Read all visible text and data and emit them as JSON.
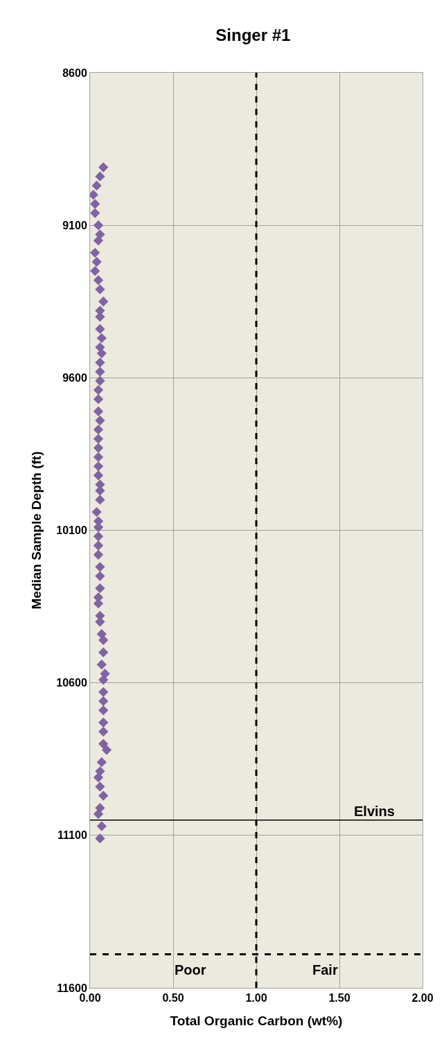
{
  "chart_data": {
    "type": "scatter",
    "title": "Singer #1",
    "xlabel": "Total Organic Carbon (wt%)",
    "ylabel": "Median Sample Depth (ft)",
    "x": [
      0.08,
      0.06,
      0.04,
      0.02,
      0.03,
      0.03,
      0.05,
      0.06,
      0.05,
      0.03,
      0.04,
      0.03,
      0.05,
      0.06,
      0.08,
      0.06,
      0.06,
      0.06,
      0.07,
      0.06,
      0.07,
      0.06,
      0.06,
      0.06,
      0.05,
      0.05,
      0.05,
      0.06,
      0.05,
      0.05,
      0.05,
      0.05,
      0.05,
      0.05,
      0.06,
      0.06,
      0.06,
      0.04,
      0.05,
      0.05,
      0.05,
      0.05,
      0.05,
      0.06,
      0.06,
      0.06,
      0.05,
      0.05,
      0.06,
      0.06,
      0.07,
      0.08,
      0.08,
      0.07,
      0.09,
      0.08,
      0.08,
      0.08,
      0.08,
      0.08,
      0.08,
      0.08,
      0.1,
      0.07,
      0.06,
      0.05,
      0.06,
      0.08,
      0.06,
      0.05,
      0.07,
      0.06
    ],
    "values": [
      8910,
      8940,
      8970,
      9000,
      9030,
      9060,
      9100,
      9130,
      9150,
      9190,
      9220,
      9250,
      9280,
      9310,
      9350,
      9380,
      9400,
      9440,
      9470,
      9500,
      9520,
      9550,
      9580,
      9610,
      9640,
      9670,
      9710,
      9740,
      9770,
      9800,
      9830,
      9860,
      9890,
      9920,
      9950,
      9970,
      10000,
      10040,
      10070,
      10090,
      10120,
      10150,
      10180,
      10220,
      10250,
      10290,
      10320,
      10340,
      10380,
      10400,
      10440,
      10460,
      10500,
      10540,
      10570,
      10590,
      10630,
      10660,
      10690,
      10730,
      10760,
      10800,
      10820,
      10860,
      10890,
      10910,
      10940,
      10970,
      11010,
      11030,
      11070,
      11110
    ],
    "color": "#8064a2",
    "marker": "diamond",
    "xlim": [
      0,
      2
    ],
    "xticks": [
      {
        "value": 0,
        "label": "0.00"
      },
      {
        "value": 0.5,
        "label": "0.50"
      },
      {
        "value": 1,
        "label": "1.00"
      },
      {
        "value": 1.5,
        "label": "1.50"
      },
      {
        "value": 2,
        "label": "2.00"
      }
    ],
    "ylim": [
      11600,
      8600
    ],
    "yticks": [
      8600,
      9100,
      9600,
      10100,
      10600,
      11100,
      11600
    ],
    "grid": true,
    "ref_lines": [
      {
        "axis": "x",
        "value": 1,
        "color": "#000000",
        "line_style": "dashed"
      },
      {
        "axis": "y",
        "value": 11490,
        "color": "#000000",
        "line_style": "dashed"
      },
      {
        "axis": "y",
        "value": 11050,
        "label": "Elvins",
        "color": "#000000",
        "line_style": "solid"
      }
    ],
    "annotations": [
      "Poor",
      "Fair"
    ]
  }
}
